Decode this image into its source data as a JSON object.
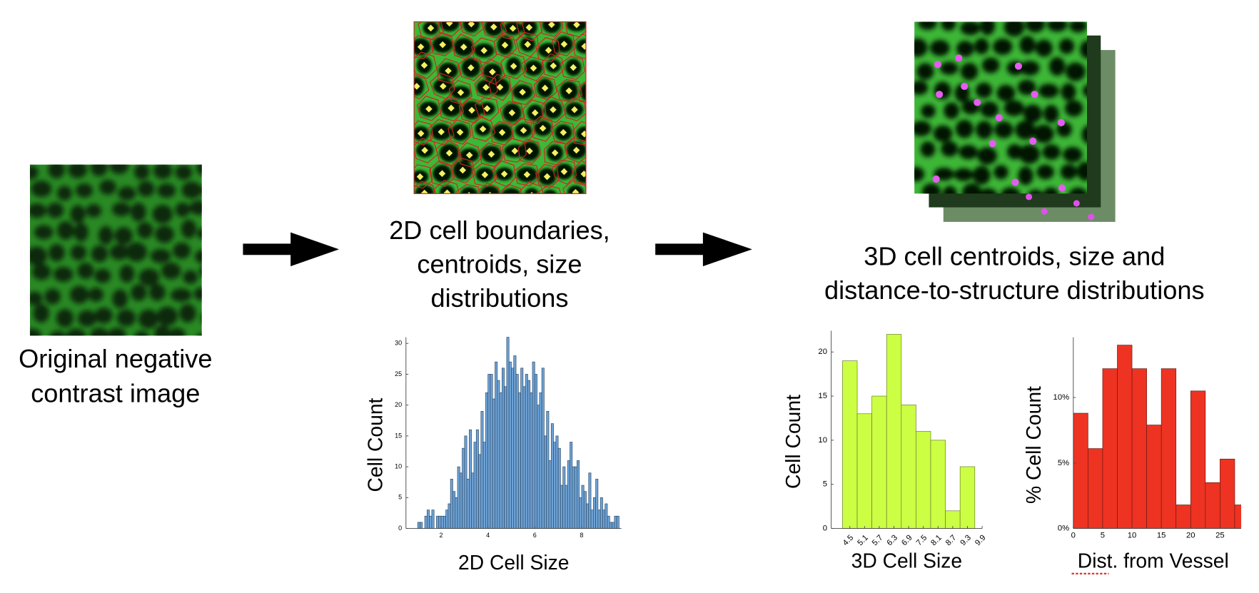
{
  "steps": [
    {
      "caption": [
        "Original negative",
        "contrast image"
      ]
    },
    {
      "caption": [
        "2D cell boundaries,",
        "centroids, size",
        "distributions"
      ]
    },
    {
      "caption": [
        "3D cell centroids, size and",
        "distance-to-structure distributions"
      ]
    }
  ],
  "chart_data": [
    {
      "type": "histogram",
      "xlabel": "2D Cell Size",
      "ylabel": "Cell Count",
      "color": "#6fa3d6",
      "bins": [
        1.0,
        1.1,
        1.2,
        1.3,
        1.4,
        1.5,
        1.6,
        1.7,
        1.8,
        1.9,
        2.0,
        2.1,
        2.2,
        2.3,
        2.4,
        2.5,
        2.6,
        2.7,
        2.8,
        2.9,
        3.0,
        3.1,
        3.2,
        3.3,
        3.4,
        3.5,
        3.6,
        3.7,
        3.8,
        3.9,
        4.0,
        4.1,
        4.2,
        4.3,
        4.4,
        4.5,
        4.6,
        4.7,
        4.8,
        4.9,
        5.0,
        5.1,
        5.2,
        5.3,
        5.4,
        5.5,
        5.6,
        5.7,
        5.8,
        5.9,
        6.0,
        6.1,
        6.2,
        6.3,
        6.4,
        6.5,
        6.6,
        6.7,
        6.8,
        6.9,
        7.0,
        7.1,
        7.2,
        7.3,
        7.4,
        7.5,
        7.6,
        7.7,
        7.8,
        7.9,
        8.0,
        8.1,
        8.2,
        8.3,
        8.4,
        8.5,
        8.6,
        8.7,
        8.8,
        8.9,
        9.0,
        9.1,
        9.2,
        9.3,
        9.4,
        9.5,
        9.6
      ],
      "values": [
        1,
        1,
        0,
        2,
        3,
        2,
        3,
        0,
        2,
        2,
        2,
        2,
        3,
        4,
        8,
        6,
        5,
        10,
        9,
        13,
        15,
        8,
        16,
        9,
        14,
        16,
        12,
        19,
        14,
        22,
        25,
        25,
        21,
        27,
        24,
        22,
        26,
        23,
        31,
        27,
        26,
        28,
        25,
        22,
        26,
        23,
        25,
        24,
        22,
        27,
        25,
        20,
        22,
        26,
        15,
        19,
        11,
        17,
        14,
        15,
        13,
        7,
        10,
        7,
        11,
        14,
        10,
        10,
        11,
        5,
        7,
        6,
        4,
        9,
        3,
        5,
        8,
        3,
        5,
        3,
        4,
        2,
        1,
        1,
        2,
        2
      ],
      "xlim": [
        0.5,
        9.7
      ],
      "ylim": [
        0,
        31
      ],
      "xticks": [
        2,
        4,
        6,
        8
      ],
      "yticks": [
        0,
        5,
        10,
        15,
        20,
        25,
        30
      ]
    },
    {
      "type": "histogram",
      "xlabel": "3D Cell Size",
      "ylabel": "Cell Count",
      "color": "#ccff44",
      "bins": [
        4.2,
        4.8,
        5.4,
        6.0,
        6.6,
        7.2,
        7.8,
        8.4,
        9.0,
        9.6
      ],
      "values": [
        19,
        13,
        15,
        22,
        14,
        11,
        10,
        2,
        7
      ],
      "xlim": [
        3.74,
        9.9
      ],
      "ylim": [
        0,
        22.4
      ],
      "xticks": [
        4.5,
        5.1,
        5.7,
        6.3,
        6.9,
        7.5,
        8.1,
        8.7,
        9.3,
        9.9
      ],
      "yticks": [
        0,
        5,
        10,
        15,
        20
      ]
    },
    {
      "type": "histogram",
      "xlabel": "Dist. from Vessel",
      "ylabel": "% Cell Count",
      "color": "#ee3322",
      "bins": [
        0,
        2.5,
        5,
        7.5,
        10,
        12.5,
        15,
        17.5,
        20,
        22.5,
        25,
        27.5,
        30
      ],
      "values": [
        8.8,
        6.1,
        12.2,
        14.0,
        12.2,
        7.9,
        12.2,
        1.8,
        10.5,
        3.5,
        5.3,
        1.8
      ],
      "xlim": [
        0,
        28.6
      ],
      "ylim": [
        0,
        14.6
      ],
      "xticks": [
        0,
        5,
        10,
        15,
        20,
        25
      ],
      "yticks": [
        {
          "value": 0,
          "label": "0%"
        },
        {
          "value": 5,
          "label": "5%"
        },
        {
          "value": 10,
          "label": "10%"
        }
      ]
    }
  ]
}
